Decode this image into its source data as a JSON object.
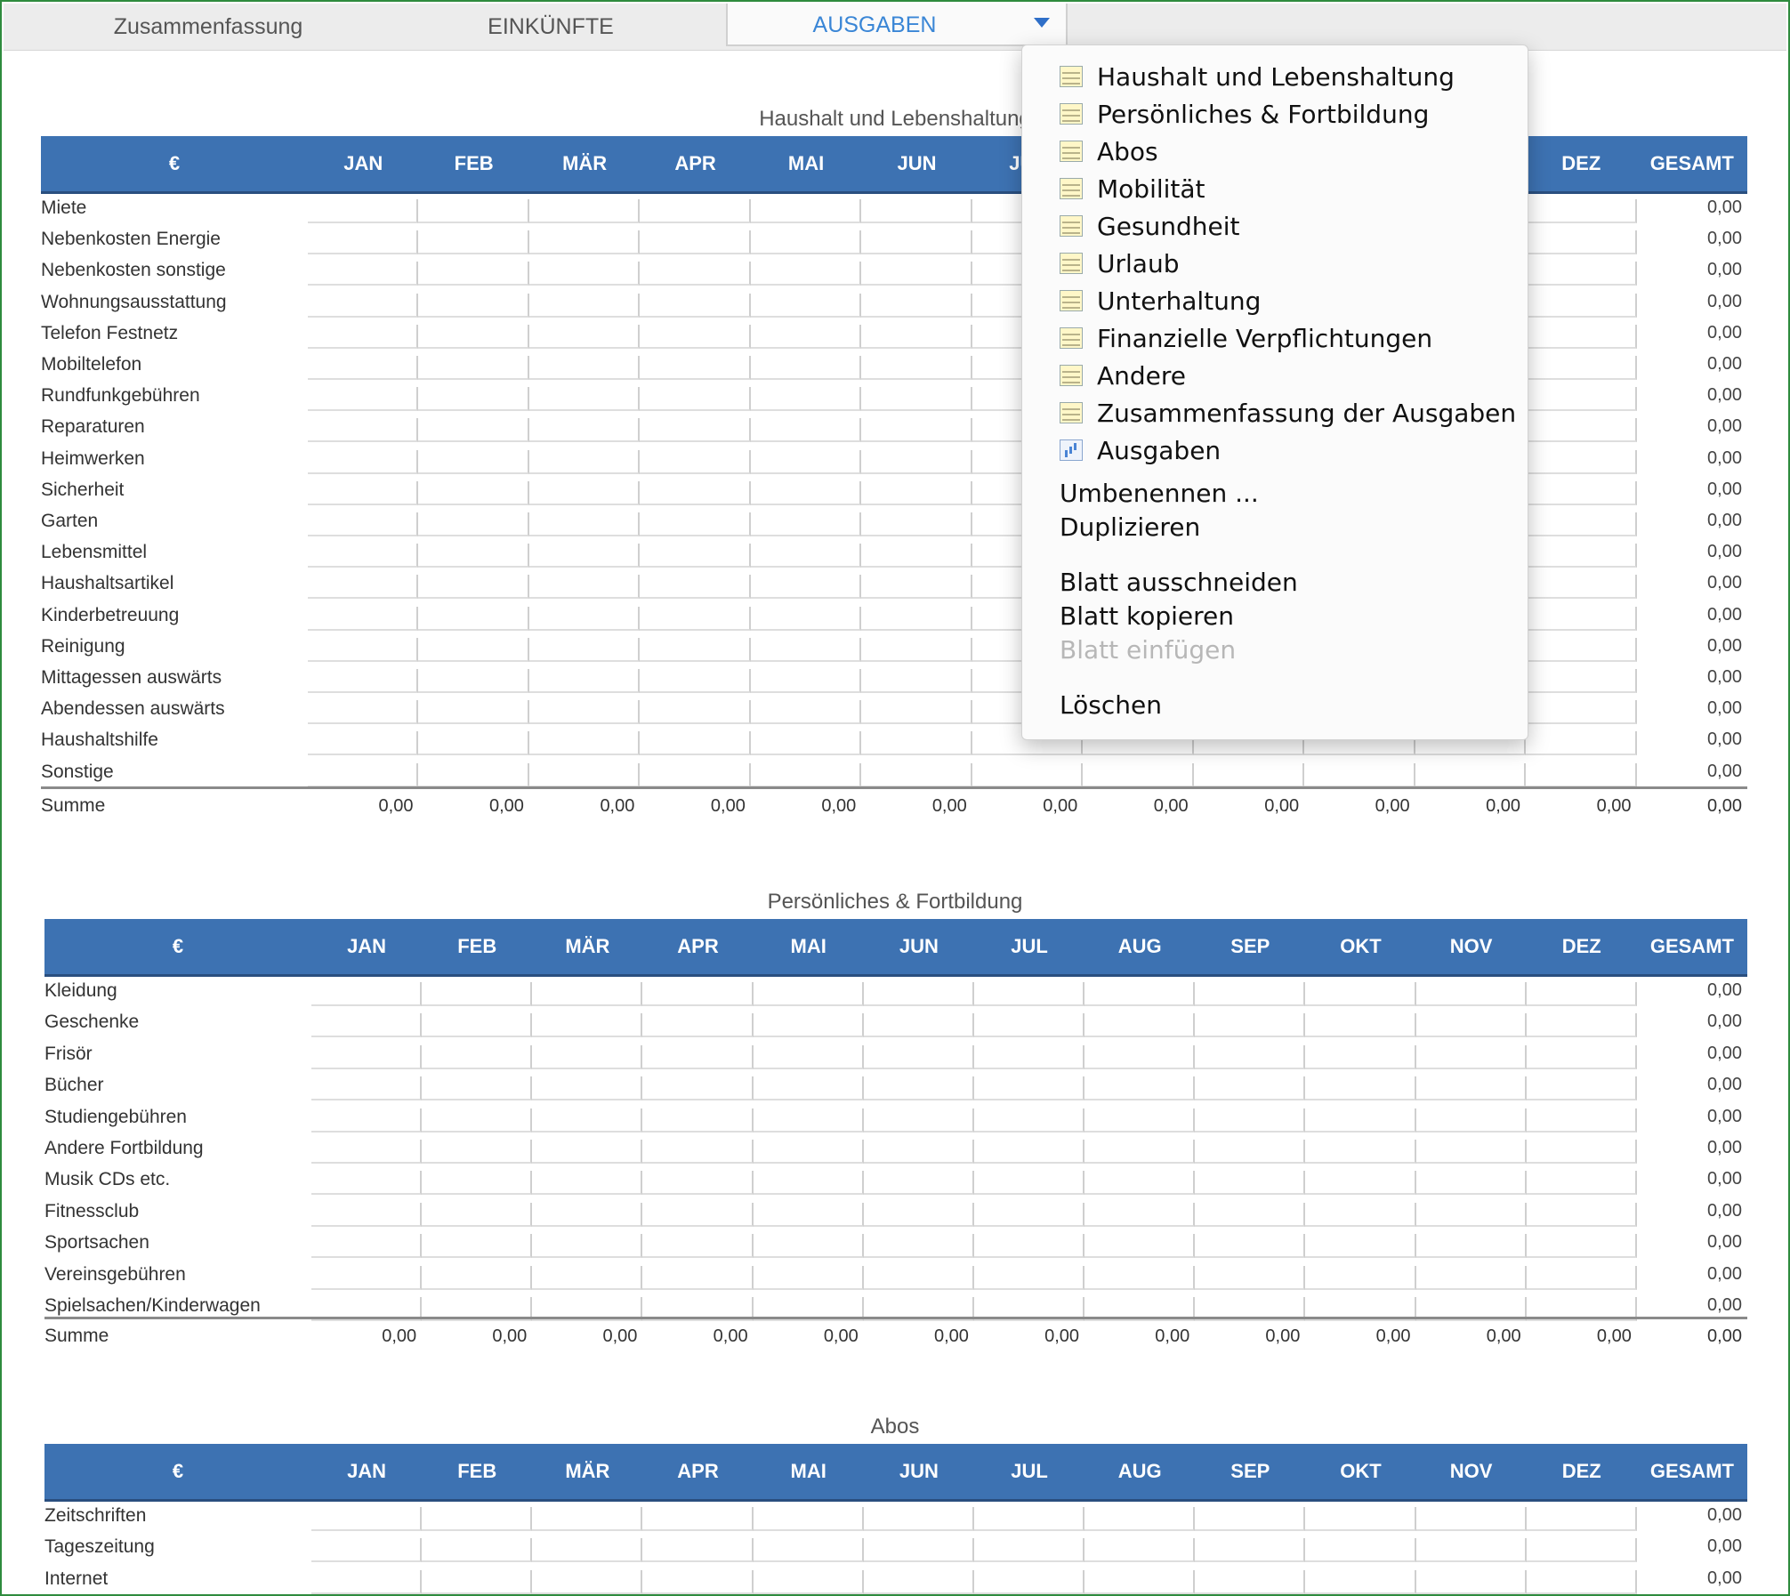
{
  "tabs": [
    {
      "label": "Zusammenfassung"
    },
    {
      "label": "EINKÜNFTE"
    },
    {
      "label": "AUSGABEN"
    }
  ],
  "columns": [
    "€",
    "JAN",
    "FEB",
    "MÄR",
    "APR",
    "MAI",
    "JUN",
    "JUL",
    "AUG",
    "SEP",
    "OKT",
    "NOV",
    "DEZ",
    "GESAMT"
  ],
  "sections": [
    {
      "title": "Haushalt und Lebenshaltung",
      "rows": [
        "Miete",
        "Nebenkosten Energie",
        "Nebenkosten sonstige",
        "Wohnungsausstattung",
        "Telefon Festnetz",
        "Mobiltelefon",
        "Rundfunkgebühren",
        "Reparaturen",
        "Heimwerken",
        "Sicherheit",
        "Garten",
        "Lebensmittel",
        "Haushaltsartikel",
        "Kinderbetreuung",
        "Reinigung",
        "Mittagessen auswärts",
        "Abendessen auswärts",
        "Haushaltshilfe",
        "Sonstige"
      ],
      "row_total": "0,00",
      "sum_label": "Summe",
      "sum_values": [
        "0,00",
        "0,00",
        "0,00",
        "0,00",
        "0,00",
        "0,00",
        "0,00",
        "0,00",
        "0,00",
        "0,00",
        "0,00",
        "0,00",
        "0,00"
      ]
    },
    {
      "title": "Persönliches & Fortbildung",
      "rows": [
        "Kleidung",
        "Geschenke",
        "Frisör",
        "Bücher",
        "Studiengebühren",
        "Andere Fortbildung",
        "Musik CDs etc.",
        "Fitnessclub",
        "Sportsachen",
        "Vereinsgebühren",
        "Spielsachen/Kinderwagen"
      ],
      "row_total": "0,00",
      "sum_label": "Summe",
      "sum_values": [
        "0,00",
        "0,00",
        "0,00",
        "0,00",
        "0,00",
        "0,00",
        "0,00",
        "0,00",
        "0,00",
        "0,00",
        "0,00",
        "0,00",
        "0,00"
      ]
    },
    {
      "title": "Abos",
      "rows": [
        "Zeitschriften",
        "Tageszeitung",
        "Internet"
      ],
      "row_total": "0,00",
      "sum_label": "",
      "sum_values": []
    }
  ],
  "menu": {
    "sheets": [
      {
        "label": "Haushalt und Lebenshaltung",
        "icon": "table-icon"
      },
      {
        "label": "Persönliches & Fortbildung",
        "icon": "table-icon"
      },
      {
        "label": "Abos",
        "icon": "table-icon"
      },
      {
        "label": "Mobilität",
        "icon": "table-icon"
      },
      {
        "label": "Gesundheit",
        "icon": "table-icon"
      },
      {
        "label": "Urlaub",
        "icon": "table-icon"
      },
      {
        "label": "Unterhaltung",
        "icon": "table-icon"
      },
      {
        "label": "Finanzielle Verpflichtungen",
        "icon": "table-icon"
      },
      {
        "label": "Andere",
        "icon": "table-icon"
      },
      {
        "label": "Zusammenfassung der Ausgaben",
        "icon": "table-icon"
      },
      {
        "label": "Ausgaben",
        "icon": "chart-icon"
      }
    ],
    "rename": "Umbenennen ...",
    "duplicate": "Duplizieren",
    "cut_sheet": "Blatt ausschneiden",
    "copy_sheet": "Blatt kopieren",
    "paste_sheet": "Blatt einfügen",
    "delete": "Löschen"
  },
  "colors": {
    "header_bg": "#3d72b2",
    "active_tab_text": "#3a86d6",
    "frame": "#2e8b3e"
  }
}
